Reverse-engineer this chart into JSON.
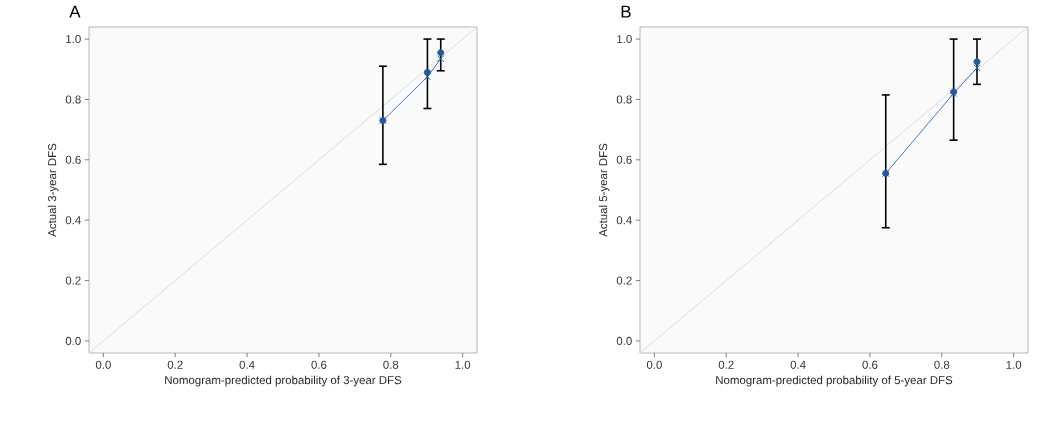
{
  "chart_data": [
    {
      "type": "scatter",
      "title": "A",
      "xlabel": "Nomogram-predicted probability of 3-year DFS",
      "ylabel": "Actual 3-year DFS",
      "xlim": [
        -0.04,
        1.04
      ],
      "ylim": [
        -0.04,
        1.04
      ],
      "xticks": [
        {
          "value": 0,
          "label": "0.0"
        },
        {
          "value": 0.2,
          "label": "0.2"
        },
        {
          "value": 0.4,
          "label": "0.4"
        },
        {
          "value": 0.6,
          "label": "0.6"
        },
        {
          "value": 0.8,
          "label": "0.8"
        },
        {
          "value": 1,
          "label": "1.0"
        }
      ],
      "yticks": [
        {
          "value": 0,
          "label": "0.0"
        },
        {
          "value": 0.2,
          "label": "0.2"
        },
        {
          "value": 0.4,
          "label": "0.4"
        },
        {
          "value": 0.6,
          "label": "0.6"
        },
        {
          "value": 0.8,
          "label": "0.8"
        },
        {
          "value": 1,
          "label": "1.0"
        }
      ],
      "series": [
        {
          "type": "line",
          "color": "#d9d9d9",
          "marker": "none",
          "x": [
            -0.04,
            1.04
          ],
          "values": [
            -0.04,
            1.04
          ]
        },
        {
          "type": "line",
          "color": "#2b6cb5",
          "marker": "cross",
          "x": [
            0.778,
            0.902,
            0.939
          ],
          "values": [
            0.73,
            0.875,
            0.935
          ]
        },
        {
          "color": "#1f5a9e",
          "marker": "circle",
          "x": [
            0.778,
            0.902,
            0.939
          ],
          "values": [
            0.73,
            0.89,
            0.955
          ],
          "errors": [
            [
              0.585,
              0.91
            ],
            [
              0.77,
              1.0
            ],
            [
              0.895,
              1.0
            ]
          ]
        }
      ]
    },
    {
      "type": "scatter",
      "title": "B",
      "xlabel": "Nomogram-predicted probability of 5-year DFS",
      "ylabel": "Actual 5-year DFS",
      "xlim": [
        -0.04,
        1.04
      ],
      "ylim": [
        -0.04,
        1.04
      ],
      "xticks": [
        {
          "value": 0,
          "label": "0.0"
        },
        {
          "value": 0.2,
          "label": "0.2"
        },
        {
          "value": 0.4,
          "label": "0.4"
        },
        {
          "value": 0.6,
          "label": "0.6"
        },
        {
          "value": 0.8,
          "label": "0.8"
        },
        {
          "value": 1,
          "label": "1.0"
        }
      ],
      "yticks": [
        {
          "value": 0,
          "label": "0.0"
        },
        {
          "value": 0.2,
          "label": "0.2"
        },
        {
          "value": 0.4,
          "label": "0.4"
        },
        {
          "value": 0.6,
          "label": "0.6"
        },
        {
          "value": 0.8,
          "label": "0.8"
        },
        {
          "value": 1,
          "label": "1.0"
        }
      ],
      "series": [
        {
          "type": "line",
          "color": "#d9d9d9",
          "marker": "none",
          "x": [
            -0.04,
            1.04
          ],
          "values": [
            -0.04,
            1.04
          ]
        },
        {
          "type": "line",
          "color": "#2b6cb5",
          "marker": "cross",
          "x": [
            0.644,
            0.833,
            0.898
          ],
          "values": [
            0.555,
            0.82,
            0.905
          ]
        },
        {
          "color": "#1f5a9e",
          "marker": "circle",
          "x": [
            0.644,
            0.833,
            0.898
          ],
          "values": [
            0.555,
            0.825,
            0.925
          ],
          "errors": [
            [
              0.375,
              0.815
            ],
            [
              0.665,
              1.0
            ],
            [
              0.85,
              1.0
            ]
          ]
        }
      ]
    }
  ]
}
